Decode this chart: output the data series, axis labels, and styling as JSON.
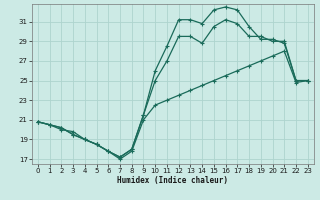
{
  "xlabel": "Humidex (Indice chaleur)",
  "background_color": "#cceae5",
  "grid_color": "#aed4ce",
  "line_color": "#1a6b5a",
  "xlim": [
    -0.5,
    23.5
  ],
  "ylim": [
    16.5,
    32.8
  ],
  "xticks": [
    0,
    1,
    2,
    3,
    4,
    5,
    6,
    7,
    8,
    9,
    10,
    11,
    12,
    13,
    14,
    15,
    16,
    17,
    18,
    19,
    20,
    21,
    22,
    23
  ],
  "yticks": [
    17,
    19,
    21,
    23,
    25,
    27,
    29,
    31
  ],
  "line1_x": [
    0,
    1,
    2,
    3,
    4,
    5,
    6,
    7,
    8,
    9,
    10,
    11,
    12,
    13,
    14,
    15,
    16,
    17,
    18,
    19,
    20,
    21,
    22,
    23
  ],
  "line1_y": [
    20.8,
    20.5,
    20.2,
    19.5,
    19.0,
    18.5,
    17.8,
    17.2,
    18.0,
    21.5,
    26.0,
    28.5,
    31.2,
    31.2,
    30.8,
    32.2,
    32.5,
    32.2,
    30.5,
    29.2,
    29.2,
    28.8,
    25.0,
    25.0
  ],
  "line2_x": [
    0,
    1,
    2,
    3,
    4,
    5,
    6,
    7,
    8,
    9,
    10,
    11,
    12,
    13,
    14,
    15,
    16,
    17,
    18,
    19,
    20,
    21,
    22,
    23
  ],
  "line2_y": [
    20.8,
    20.5,
    20.2,
    19.5,
    19.0,
    18.5,
    17.8,
    17.2,
    18.0,
    21.5,
    25.0,
    27.0,
    29.5,
    29.5,
    28.8,
    30.5,
    31.2,
    30.8,
    29.5,
    29.5,
    29.0,
    29.0,
    25.0,
    25.0
  ],
  "line3_x": [
    0,
    1,
    2,
    3,
    4,
    5,
    6,
    7,
    8,
    9,
    10,
    11,
    12,
    13,
    14,
    15,
    16,
    17,
    18,
    19,
    20,
    21,
    22,
    23
  ],
  "line3_y": [
    20.8,
    20.5,
    20.0,
    19.8,
    19.0,
    18.5,
    17.8,
    17.0,
    17.8,
    21.0,
    22.5,
    23.0,
    23.5,
    24.0,
    24.5,
    25.0,
    25.5,
    26.0,
    26.5,
    27.0,
    27.5,
    28.0,
    24.8,
    25.0
  ]
}
